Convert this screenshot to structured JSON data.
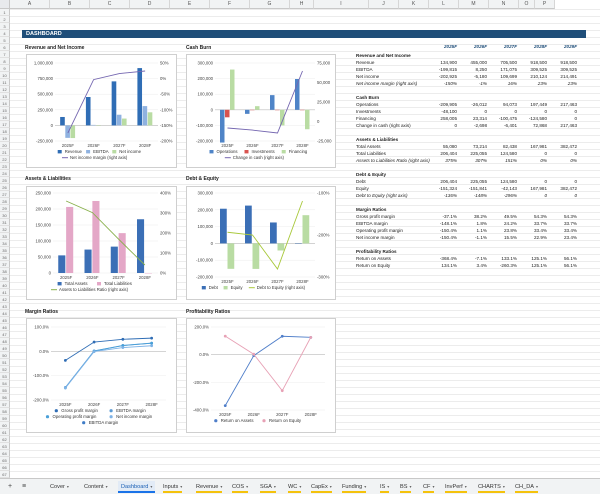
{
  "sheet": {
    "columns": [
      "A",
      "B",
      "C",
      "D",
      "E",
      "F",
      "G",
      "H",
      "I",
      "J",
      "K",
      "L",
      "M",
      "N",
      "O",
      "P"
    ],
    "rows_first": 1,
    "rows_last": 67
  },
  "dashboard": {
    "title": "DASHBOARD"
  },
  "charts": {
    "revenue": {
      "title": "Revenue and Net Income",
      "legend": [
        "Revenue",
        "EBITDA",
        "Net income",
        "Net income margin (right axis)"
      ],
      "colors": {
        "revenue": "#2f6db5",
        "ebitda": "#8fb2e0",
        "net_income": "#b9dca3",
        "margin": "#7466b0"
      }
    },
    "cash": {
      "title": "Cash Burn",
      "legend": [
        "Operations",
        "Investments",
        "Financing",
        "Change in cash (right axis)"
      ],
      "colors": {
        "operations": "#4f84c7",
        "investments": "#d9534f",
        "financing": "#b9dca3",
        "change": "#7466b0"
      }
    },
    "assets": {
      "title": "Assets & Liabilities",
      "legend": [
        "Total Assets",
        "Total Liabilities",
        "Assets to Liabilities Ratio (right axis)"
      ],
      "colors": {
        "assets": "#3b6fb6",
        "liabilities": "#e4a7c7",
        "ratio": "#88b04b"
      }
    },
    "debt": {
      "title": "Debt & Equity",
      "legend": [
        "Debt",
        "Equity",
        "Debt to Equity (right axis)"
      ],
      "colors": {
        "debt": "#3b6fb6",
        "equity": "#b9dca3",
        "ratio": "#a8c83a"
      }
    },
    "margin": {
      "title": "Margin Ratios",
      "legend": [
        "Gross profit margin",
        "EBITDA margin",
        "Operating profit margin",
        "Net income margin",
        "EBITDA margin"
      ],
      "colors": {
        "a": "#2f6db5",
        "b": "#5b9bd5",
        "c": "#4aa0d8",
        "d": "#7fb3e6",
        "e": "#3e7cc7"
      }
    },
    "profit": {
      "title": "Profitability Ratios",
      "legend": [
        "Return on Assets",
        "Return on Equity"
      ],
      "colors": {
        "roa": "#4f7ec9",
        "roe": "#e7a1b5"
      }
    }
  },
  "chart_data": [
    {
      "type": "bar",
      "title": "Revenue and Net Income",
      "categories": [
        "2025F",
        "2026F",
        "2027F",
        "2028F"
      ],
      "series": [
        {
          "name": "Revenue",
          "values": [
            134900,
            455000,
            705500,
            918500
          ]
        },
        {
          "name": "EBITDA",
          "values": [
            -199815,
            8250,
            171075,
            309525
          ]
        },
        {
          "name": "Net income",
          "values": [
            -202925,
            -5180,
            109699,
            210124
          ]
        },
        {
          "name": "Net income margin (right axis)",
          "values": [
            -150,
            -1,
            16,
            23
          ],
          "axis": "right",
          "type": "line"
        }
      ],
      "ylim": [
        -250000,
        1000000
      ],
      "y_ticks": [
        "1,000,000",
        "750,000",
        "500,000",
        "250,000",
        "0",
        "-250,000"
      ],
      "y2_ticks": [
        "50%",
        "0%",
        "-50%",
        "-100%",
        "-150%",
        "-200%"
      ]
    },
    {
      "type": "bar",
      "title": "Cash Burn",
      "categories": [
        "2025F",
        "2026F",
        "2027F",
        "2028F"
      ],
      "series": [
        {
          "name": "Operations",
          "values": [
            -209905,
            -26012,
            94073,
            197449
          ]
        },
        {
          "name": "Investments",
          "values": [
            -48100,
            0,
            0,
            0
          ]
        },
        {
          "name": "Financing",
          "values": [
            258005,
            23314,
            -100475,
            -124580
          ]
        },
        {
          "name": "Change in cash (right axis)",
          "values": [
            0,
            -2698,
            -6401,
            72868
          ],
          "axis": "right",
          "type": "line"
        }
      ],
      "ylim": [
        -200000,
        300000
      ],
      "y_ticks": [
        "300,000",
        "200,000",
        "100,000",
        "0",
        "-100,000",
        "-200,000"
      ],
      "y2_ticks": [
        "75,000",
        "50,000",
        "25,000",
        "0",
        "-25,000"
      ]
    },
    {
      "type": "bar",
      "title": "Assets & Liabilities",
      "categories": [
        "2025F",
        "2026F",
        "2027F",
        "2028F"
      ],
      "series": [
        {
          "name": "Total Assets",
          "values": [
            55080,
            73214,
            82438,
            167981
          ]
        },
        {
          "name": "Total Liabilities",
          "values": [
            206404,
            225055,
            124580,
            0
          ]
        },
        {
          "name": "Assets to Liabilities Ratio (right axis)",
          "values": [
            375,
            307,
            151,
            0
          ],
          "axis": "right",
          "type": "line"
        }
      ],
      "ylim": [
        0,
        250000
      ],
      "y_ticks": [
        "250,000",
        "200,000",
        "150,000",
        "100,000",
        "50,000",
        "0"
      ],
      "y2_ticks": [
        "400%",
        "300%",
        "200%",
        "100%",
        "0%"
      ]
    },
    {
      "type": "bar",
      "title": "Debt & Equity",
      "categories": [
        "2025F",
        "2026F",
        "2027F",
        "2028F"
      ],
      "series": [
        {
          "name": "Debt",
          "values": [
            206404,
            225055,
            124580,
            0
          ]
        },
        {
          "name": "Equity",
          "values": [
            -151324,
            -151841,
            -42143,
            167981
          ]
        },
        {
          "name": "Debt to Equity (right axis)",
          "values": [
            -136,
            -148,
            -296,
            0
          ],
          "axis": "right",
          "type": "line"
        }
      ],
      "ylim": [
        -200000,
        300000
      ],
      "y_ticks": [
        "300,000",
        "200,000",
        "100,000",
        "0",
        "-100,000",
        "-200,000"
      ],
      "y2_ticks": [
        "-100%",
        "-200%",
        "-300%"
      ]
    },
    {
      "type": "line",
      "title": "Margin Ratios",
      "categories": [
        "2025F",
        "2026F",
        "2027F",
        "2028F"
      ],
      "series": [
        {
          "name": "Gross profit margin",
          "values": [
            -37.1,
            38.2,
            49.5,
            54.3
          ]
        },
        {
          "name": "EBITDA margin",
          "values": [
            -148.1,
            1.8,
            24.2,
            33.7
          ]
        },
        {
          "name": "Operating profit margin",
          "values": [
            -150.4,
            1.1,
            23.8,
            33.4
          ]
        },
        {
          "name": "Net income margin",
          "values": [
            -150.4,
            -1.1,
            15.5,
            22.9
          ]
        }
      ],
      "ylim": [
        -200,
        100
      ],
      "y_ticks": [
        "100.0%",
        "0.0%",
        "-100.0%",
        "-200.0%"
      ]
    },
    {
      "type": "line",
      "title": "Profitability Ratios",
      "categories": [
        "2025F",
        "2026F",
        "2027F",
        "2028F"
      ],
      "series": [
        {
          "name": "Return on Assets",
          "values": [
            -368.4,
            -7.1,
            133.1,
            125.1
          ]
        },
        {
          "name": "Return on Equity",
          "values": [
            134.1,
            3.4,
            -260.3,
            125.1
          ]
        }
      ],
      "ylim": [
        -400,
        200
      ],
      "y_ticks": [
        "200.0%",
        "0.0%",
        "-200.0%",
        "-400.0%"
      ]
    }
  ],
  "table": {
    "years": [
      "2025F",
      "2026F",
      "2027F",
      "2028F",
      "2029F"
    ],
    "rows": [
      {
        "label": "Revenue and Net Income",
        "section": true
      },
      {
        "label": "Revenue",
        "values": [
          "134,900",
          "455,000",
          "705,500",
          "918,500",
          "918,500"
        ]
      },
      {
        "label": "EBITDA",
        "values": [
          "-199,815",
          "8,250",
          "171,075",
          "309,525",
          "309,525"
        ]
      },
      {
        "label": "Net income",
        "values": [
          "-202,925",
          "-5,180",
          "109,699",
          "210,124",
          "214,491"
        ]
      },
      {
        "label": "Net income margin (right axis)",
        "values": [
          "-150%",
          "-1%",
          "16%",
          "23%",
          "23%"
        ],
        "italic": true
      },
      {
        "label": "",
        "blank": true
      },
      {
        "label": "Cash Burn",
        "section": true
      },
      {
        "label": "Operations",
        "values": [
          "-209,905",
          "-26,012",
          "94,073",
          "197,449",
          "217,463"
        ]
      },
      {
        "label": "Investments",
        "values": [
          "-48,100",
          "0",
          "0",
          "0",
          "0"
        ]
      },
      {
        "label": "Financing",
        "values": [
          "258,005",
          "23,314",
          "-100,475",
          "-124,580",
          "0"
        ]
      },
      {
        "label": "Change in cash (right axis)",
        "values": [
          "0",
          "-2,698",
          "-6,401",
          "72,868",
          "217,463"
        ]
      },
      {
        "label": "",
        "blank": true
      },
      {
        "label": "Assets & Liabilities",
        "section": true
      },
      {
        "label": "Total Assets",
        "values": [
          "55,080",
          "73,214",
          "82,438",
          "167,981",
          "382,472"
        ]
      },
      {
        "label": "Total Liabilities",
        "values": [
          "206,404",
          "225,055",
          "124,580",
          "0",
          "0"
        ]
      },
      {
        "label": "Assets to Liabilities Ratio (right axis)",
        "values": [
          "375%",
          "307%",
          "151%",
          "0%",
          "0%"
        ],
        "italic": true
      },
      {
        "label": "",
        "blank": true
      },
      {
        "label": "Debt & Equity",
        "section": true
      },
      {
        "label": "Debt",
        "values": [
          "206,404",
          "225,055",
          "124,580",
          "0",
          "0"
        ]
      },
      {
        "label": "Equity",
        "values": [
          "-151,324",
          "-151,841",
          "-42,143",
          "167,981",
          "382,472"
        ]
      },
      {
        "label": "Debt to Equity (right axis)",
        "values": [
          "-136%",
          "-148%",
          "-296%",
          "0",
          "0"
        ],
        "italic": true
      },
      {
        "label": "",
        "blank": true
      },
      {
        "label": "Margin Ratios",
        "section": true
      },
      {
        "label": "Gross profit margin",
        "values": [
          "-37.1%",
          "38.2%",
          "49.5%",
          "54.3%",
          "54.3%"
        ]
      },
      {
        "label": "EBITDA margin",
        "values": [
          "-148.1%",
          "1.8%",
          "24.2%",
          "33.7%",
          "33.7%"
        ]
      },
      {
        "label": "Operating profit margin",
        "values": [
          "-150.4%",
          "1.1%",
          "23.8%",
          "33.4%",
          "33.4%"
        ]
      },
      {
        "label": "Net income margin",
        "values": [
          "-150.4%",
          "-1.1%",
          "15.5%",
          "22.9%",
          "23.4%"
        ]
      },
      {
        "label": "",
        "blank": true
      },
      {
        "label": "Profitability Ratios",
        "section": true
      },
      {
        "label": "Return on Assets",
        "values": [
          "-368.4%",
          "-7.1%",
          "133.1%",
          "125.1%",
          "56.1%"
        ]
      },
      {
        "label": "Return on Equity",
        "values": [
          "134.1%",
          "3.4%",
          "-260.3%",
          "125.1%",
          "56.1%"
        ]
      }
    ]
  },
  "tabs": [
    {
      "label": "Cover",
      "color": ""
    },
    {
      "label": "Content",
      "color": ""
    },
    {
      "label": "Dashboard",
      "color": "#1a73e8",
      "active": true
    },
    {
      "label": "Inputs",
      "color": "#f4c20d"
    },
    {
      "label": "Revenue",
      "color": "#f4c20d"
    },
    {
      "label": "COS",
      "color": "#f4c20d"
    },
    {
      "label": "SGA",
      "color": "#f4c20d"
    },
    {
      "label": "WC",
      "color": "#f4c20d"
    },
    {
      "label": "CapEx",
      "color": "#f4c20d"
    },
    {
      "label": "Funding",
      "color": "#f4c20d"
    },
    {
      "label": "IS",
      "color": "#f4c20d"
    },
    {
      "label": "BS",
      "color": "#f4c20d"
    },
    {
      "label": "CF",
      "color": "#f4c20d"
    },
    {
      "label": "InvPerf",
      "color": "#f4c20d"
    },
    {
      "label": "CHARTS",
      "color": "#f4c20d"
    },
    {
      "label": "CH_DA",
      "color": "#f4c20d"
    }
  ],
  "tabbar": {
    "add": "+",
    "menu": "≡"
  }
}
